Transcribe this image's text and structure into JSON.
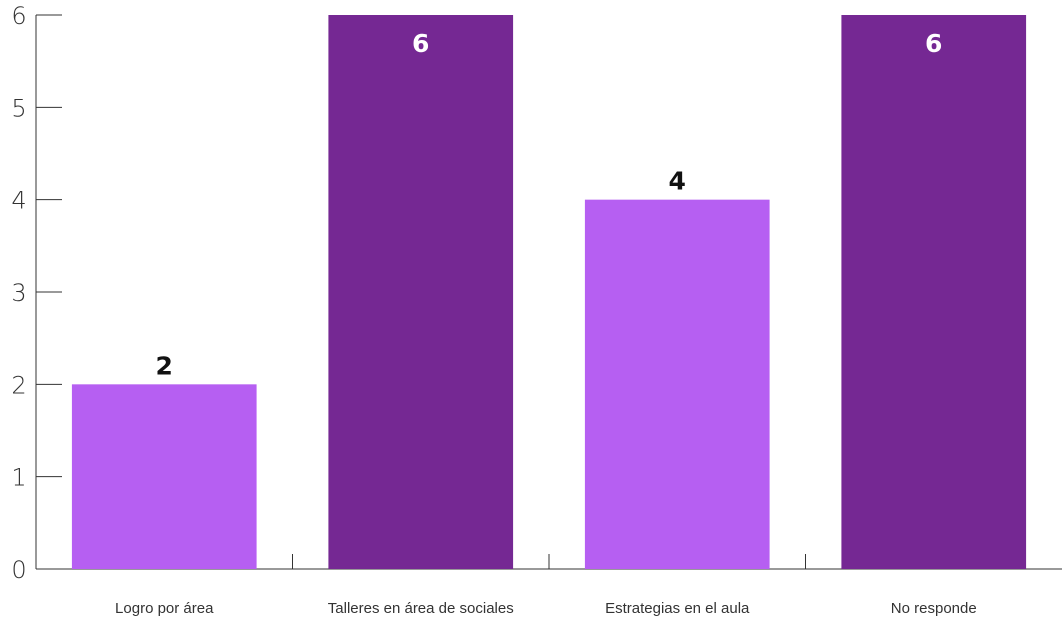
{
  "chart_data": {
    "type": "bar",
    "categories": [
      "Logro por área",
      "Talleres en área de sociales",
      "Estrategias en el aula",
      "No responde"
    ],
    "values": [
      2,
      6,
      4,
      6
    ],
    "data_labels": [
      "2",
      "6",
      "4",
      "6"
    ],
    "bar_colors": [
      "#b65ff2",
      "#752893",
      "#b65ff2",
      "#752893"
    ],
    "label_position": [
      "outside",
      "inside",
      "outside",
      "inside"
    ],
    "label_colors": [
      "#111111",
      "#ffffff",
      "#111111",
      "#ffffff"
    ],
    "ylim": [
      0,
      6
    ],
    "yticks": [
      0,
      1,
      2,
      3,
      4,
      5,
      6
    ],
    "ytick_labels": [
      "0",
      "1",
      "2",
      "3",
      "4",
      "5",
      "6"
    ],
    "title": "",
    "xlabel": "",
    "ylabel": "",
    "grid": false,
    "legend": "none"
  }
}
